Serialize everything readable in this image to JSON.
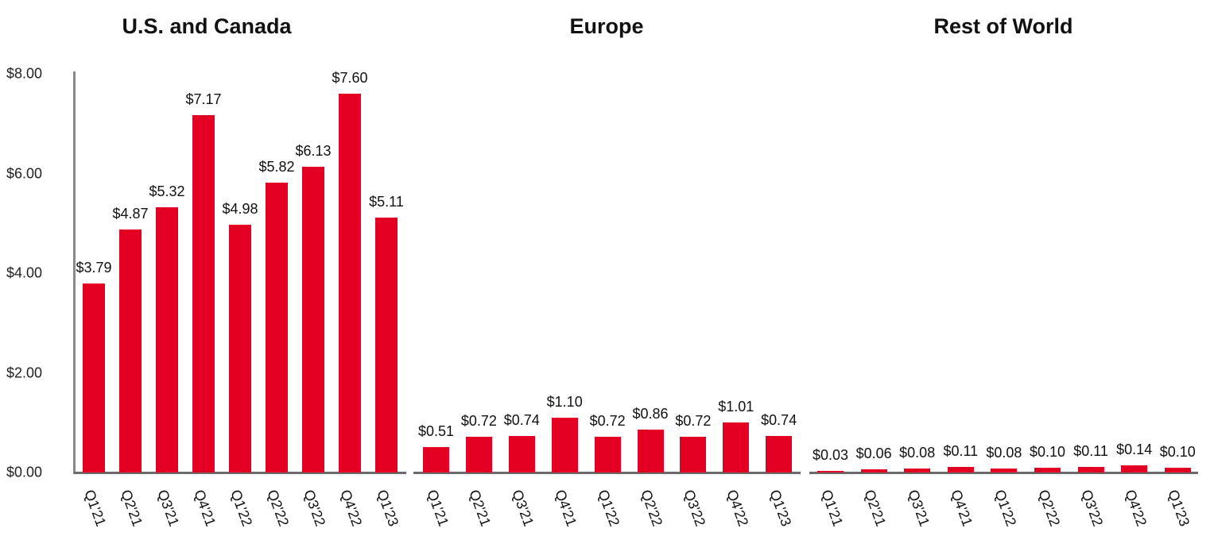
{
  "chart_data": [
    {
      "type": "bar",
      "title": "U.S. and Canada",
      "categories": [
        "Q1'21",
        "Q2'21",
        "Q3'21",
        "Q4'21",
        "Q1'22",
        "Q2'22",
        "Q3'22",
        "Q4'22",
        "Q1'23"
      ],
      "values": [
        3.79,
        4.87,
        5.32,
        7.17,
        4.98,
        5.82,
        6.13,
        7.6,
        5.11
      ],
      "labels": [
        "$3.79",
        "$4.87",
        "$5.32",
        "$7.17",
        "$4.98",
        "$5.82",
        "$6.13",
        "$7.60",
        "$5.11"
      ],
      "xlabel": "",
      "ylabel": "",
      "ylim": [
        0,
        8
      ],
      "yticks": [
        "$0.00",
        "$2.00",
        "$4.00",
        "$6.00",
        "$8.00"
      ],
      "grid": false,
      "color": "#e30022"
    },
    {
      "type": "bar",
      "title": "Europe",
      "categories": [
        "Q1'21",
        "Q2'21",
        "Q3'21",
        "Q4'21",
        "Q1'22",
        "Q2'22",
        "Q3'22",
        "Q4'22",
        "Q1'23"
      ],
      "values": [
        0.51,
        0.72,
        0.74,
        1.1,
        0.72,
        0.86,
        0.72,
        1.01,
        0.74
      ],
      "labels": [
        "$0.51",
        "$0.72",
        "$0.74",
        "$1.10",
        "$0.72",
        "$0.86",
        "$0.72",
        "$1.01",
        "$0.74"
      ],
      "xlabel": "",
      "ylabel": "",
      "ylim": [
        0,
        8
      ],
      "grid": false,
      "color": "#e30022"
    },
    {
      "type": "bar",
      "title": "Rest of World",
      "categories": [
        "Q1'21",
        "Q2'21",
        "Q3'21",
        "Q4'21",
        "Q1'22",
        "Q2'22",
        "Q3'22",
        "Q4'22",
        "Q1'23"
      ],
      "values": [
        0.03,
        0.06,
        0.08,
        0.11,
        0.08,
        0.1,
        0.11,
        0.14,
        0.1
      ],
      "labels": [
        "$0.03",
        "$0.06",
        "$0.08",
        "$0.11",
        "$0.08",
        "$0.10",
        "$0.11",
        "$0.14",
        "$0.10"
      ],
      "xlabel": "",
      "ylabel": "",
      "ylim": [
        0,
        8
      ],
      "grid": false,
      "color": "#e30022"
    }
  ],
  "yaxis": {
    "ticks": [
      "$0.00",
      "$2.00",
      "$4.00",
      "$6.00",
      "$8.00"
    ]
  }
}
